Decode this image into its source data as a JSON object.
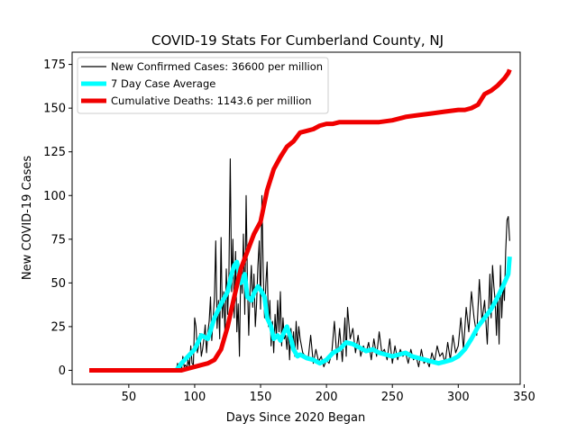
{
  "chart_data": {
    "type": "line",
    "title": "COVID-19 Stats For Cumberland County, NJ",
    "xlabel": "Days Since 2020 Began",
    "ylabel": "New COVID-19 Cases",
    "xlim": [
      7,
      347
    ],
    "ylim": [
      -8,
      182
    ],
    "xticks": [
      50,
      100,
      150,
      200,
      250,
      300,
      350
    ],
    "yticks": [
      0,
      25,
      50,
      75,
      100,
      125,
      150,
      175
    ],
    "grid": false,
    "legend_position": "top-left",
    "series": [
      {
        "name": "New Confirmed Cases: 36600 per million",
        "color": "#000000",
        "style": "thin",
        "x": [
          20,
          40,
          60,
          80,
          86,
          87,
          88,
          89,
          90,
          91,
          92,
          93,
          94,
          95,
          96,
          97,
          98,
          99,
          100,
          101,
          102,
          103,
          104,
          105,
          106,
          107,
          108,
          109,
          110,
          111,
          112,
          113,
          114,
          115,
          116,
          117,
          118,
          119,
          120,
          121,
          122,
          123,
          124,
          125,
          126,
          127,
          128,
          129,
          130,
          131,
          132,
          133,
          134,
          135,
          136,
          137,
          138,
          139,
          140,
          141,
          142,
          143,
          144,
          145,
          146,
          147,
          148,
          149,
          150,
          151,
          152,
          153,
          154,
          155,
          156,
          157,
          158,
          159,
          160,
          161,
          162,
          163,
          164,
          165,
          166,
          167,
          168,
          169,
          170,
          171,
          172,
          173,
          174,
          175,
          176,
          177,
          178,
          179,
          180,
          182,
          184,
          186,
          188,
          190,
          192,
          194,
          196,
          198,
          200,
          202,
          204,
          206,
          208,
          210,
          212,
          214,
          215,
          216,
          218,
          220,
          222,
          224,
          226,
          228,
          230,
          232,
          234,
          236,
          238,
          240,
          242,
          244,
          246,
          248,
          250,
          252,
          254,
          256,
          258,
          260,
          262,
          264,
          266,
          268,
          270,
          272,
          274,
          276,
          278,
          280,
          282,
          284,
          286,
          288,
          290,
          292,
          294,
          296,
          298,
          300,
          302,
          304,
          306,
          308,
          310,
          312,
          314,
          316,
          318,
          320,
          322,
          324,
          325,
          326,
          327,
          328,
          329,
          330,
          331,
          332,
          333,
          334,
          335,
          336,
          337,
          338,
          339
        ],
        "values": [
          0,
          0,
          0,
          0,
          0,
          4,
          0,
          2,
          0,
          8,
          2,
          3,
          1,
          6,
          2,
          14,
          4,
          3,
          30,
          25,
          10,
          14,
          21,
          8,
          12,
          18,
          26,
          10,
          22,
          28,
          42,
          17,
          30,
          42,
          74,
          24,
          40,
          18,
          76,
          30,
          45,
          20,
          58,
          32,
          54,
          121,
          45,
          75,
          30,
          68,
          22,
          38,
          8,
          60,
          44,
          78,
          32,
          100,
          52,
          20,
          45,
          60,
          36,
          55,
          25,
          38,
          60,
          74,
          35,
          100,
          55,
          30,
          50,
          62,
          25,
          40,
          14,
          28,
          10,
          32,
          18,
          40,
          22,
          45,
          14,
          30,
          18,
          20,
          12,
          25,
          6,
          24,
          14,
          22,
          8,
          28,
          12,
          25,
          18,
          10,
          8,
          6,
          20,
          4,
          12,
          5,
          8,
          2,
          6,
          4,
          10,
          28,
          6,
          24,
          5,
          30,
          8,
          36,
          18,
          24,
          10,
          20,
          8,
          14,
          10,
          16,
          6,
          18,
          8,
          22,
          10,
          12,
          6,
          18,
          4,
          14,
          6,
          12,
          8,
          10,
          4,
          12,
          6,
          8,
          2,
          12,
          4,
          6,
          2,
          10,
          5,
          14,
          8,
          10,
          4,
          16,
          6,
          20,
          10,
          14,
          30,
          12,
          36,
          22,
          45,
          30,
          20,
          52,
          28,
          40,
          15,
          55,
          30,
          60,
          48,
          40,
          20,
          44,
          15,
          60,
          30,
          50,
          40,
          68,
          86,
          88,
          74
        ],
        "show_line": true
      },
      {
        "name": "7 Day Case Average",
        "color": "#00FFFF",
        "style": "thick",
        "x": [
          86,
          90,
          95,
          100,
          105,
          110,
          115,
          120,
          125,
          128,
          130,
          132,
          135,
          138,
          140,
          143,
          145,
          148,
          150,
          153,
          155,
          158,
          160,
          163,
          165,
          168,
          170,
          173,
          175,
          178,
          180,
          185,
          190,
          195,
          200,
          205,
          210,
          215,
          220,
          225,
          230,
          235,
          240,
          245,
          250,
          255,
          260,
          265,
          270,
          275,
          280,
          285,
          290,
          295,
          300,
          305,
          310,
          315,
          320,
          325,
          330,
          335,
          338,
          339
        ],
        "values": [
          0,
          4,
          8,
          12,
          20,
          18,
          30,
          38,
          45,
          55,
          60,
          62,
          50,
          55,
          42,
          40,
          44,
          48,
          46,
          42,
          30,
          25,
          18,
          20,
          17,
          22,
          25,
          18,
          12,
          8,
          9,
          7,
          6,
          4,
          6,
          10,
          12,
          16,
          15,
          13,
          11,
          12,
          10,
          9,
          8,
          9,
          10,
          8,
          7,
          6,
          5,
          4,
          5,
          6,
          8,
          12,
          18,
          25,
          30,
          35,
          42,
          50,
          55,
          65
        ]
      },
      {
        "name": "Cumulative Deaths: 1143.6 per million",
        "color": "#F00000",
        "style": "thick",
        "x": [
          20,
          60,
          90,
          95,
          100,
          105,
          110,
          115,
          120,
          125,
          130,
          135,
          140,
          145,
          150,
          155,
          160,
          165,
          170,
          175,
          180,
          185,
          190,
          195,
          200,
          205,
          210,
          215,
          220,
          230,
          240,
          250,
          260,
          270,
          280,
          290,
          300,
          305,
          310,
          315,
          320,
          325,
          330,
          335,
          338,
          339
        ],
        "values": [
          0,
          0,
          0,
          1,
          2,
          3,
          4,
          6,
          12,
          25,
          42,
          58,
          68,
          78,
          85,
          103,
          115,
          122,
          128,
          131,
          136,
          137,
          138,
          140,
          141,
          141,
          142,
          142,
          142,
          142,
          142,
          143,
          145,
          146,
          147,
          148,
          149,
          149,
          150,
          152,
          158,
          160,
          163,
          167,
          170,
          172
        ]
      }
    ]
  }
}
